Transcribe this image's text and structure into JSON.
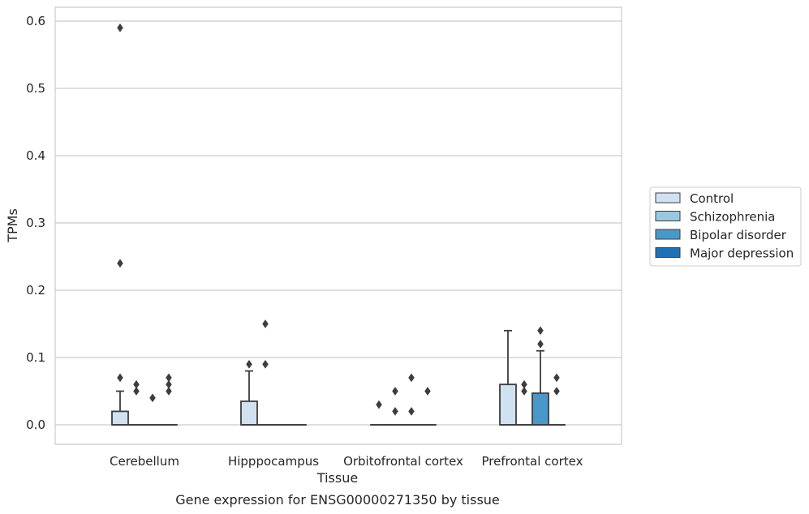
{
  "chart_data": {
    "type": "box",
    "title": "",
    "caption": "Gene expression for ENSG00000271350 by tissue",
    "xlabel": "Tissue",
    "ylabel": "TPMs",
    "ylim": [
      -0.028,
      0.62
    ],
    "yticks": [
      0.0,
      0.1,
      0.2,
      0.3,
      0.4,
      0.5,
      0.6
    ],
    "ytick_labels": [
      "0.0",
      "0.1",
      "0.2",
      "0.3",
      "0.4",
      "0.5",
      "0.6"
    ],
    "grid": "horizontal",
    "legend_position": "right",
    "categories": [
      "Cerebellum",
      "Hipppocampus",
      "Orbitofrontal cortex",
      "Prefrontal cortex"
    ],
    "series": [
      {
        "name": "Control",
        "color": "#d0e1f2",
        "boxes": [
          {
            "q1": 0.0,
            "median": 0.0,
            "q3": 0.02,
            "whisker_low": 0.0,
            "whisker_high": 0.05,
            "fliers": [
              0.07,
              0.24,
              0.59
            ]
          },
          {
            "q1": 0.0,
            "median": 0.0,
            "q3": 0.035,
            "whisker_low": 0.0,
            "whisker_high": 0.08,
            "fliers": [
              0.09
            ]
          },
          {
            "q1": 0.0,
            "median": 0.0,
            "q3": 0.0,
            "whisker_low": 0.0,
            "whisker_high": 0.0,
            "fliers": [
              0.03
            ]
          },
          {
            "q1": 0.0,
            "median": 0.0,
            "q3": 0.06,
            "whisker_low": 0.0,
            "whisker_high": 0.14,
            "fliers": []
          }
        ]
      },
      {
        "name": "Schizophrenia",
        "color": "#9ac8e0",
        "boxes": [
          {
            "q1": 0.0,
            "median": 0.0,
            "q3": 0.0,
            "whisker_low": 0.0,
            "whisker_high": 0.0,
            "fliers": [
              0.05,
              0.06
            ]
          },
          {
            "q1": 0.0,
            "median": 0.0,
            "q3": 0.0,
            "whisker_low": 0.0,
            "whisker_high": 0.0,
            "fliers": [
              0.09,
              0.15
            ]
          },
          {
            "q1": 0.0,
            "median": 0.0,
            "q3": 0.0,
            "whisker_low": 0.0,
            "whisker_high": 0.0,
            "fliers": [
              0.02,
              0.05
            ]
          },
          {
            "q1": 0.0,
            "median": 0.0,
            "q3": 0.0,
            "whisker_low": 0.0,
            "whisker_high": 0.0,
            "fliers": [
              0.05,
              0.06
            ]
          }
        ]
      },
      {
        "name": "Bipolar disorder",
        "color": "#4a98c9",
        "boxes": [
          {
            "q1": 0.0,
            "median": 0.0,
            "q3": 0.0,
            "whisker_low": 0.0,
            "whisker_high": 0.0,
            "fliers": [
              0.04
            ]
          },
          {
            "q1": 0.0,
            "median": 0.0,
            "q3": 0.0,
            "whisker_low": 0.0,
            "whisker_high": 0.0,
            "fliers": []
          },
          {
            "q1": 0.0,
            "median": 0.0,
            "q3": 0.0,
            "whisker_low": 0.0,
            "whisker_high": 0.0,
            "fliers": [
              0.02,
              0.07
            ]
          },
          {
            "q1": 0.0,
            "median": 0.0,
            "q3": 0.047,
            "whisker_low": 0.0,
            "whisker_high": 0.11,
            "fliers": [
              0.12,
              0.14
            ]
          }
        ]
      },
      {
        "name": "Major depression",
        "color": "#2070b4",
        "boxes": [
          {
            "q1": 0.0,
            "median": 0.0,
            "q3": 0.0,
            "whisker_low": 0.0,
            "whisker_high": 0.0,
            "fliers": [
              0.05,
              0.06,
              0.07
            ]
          },
          {
            "q1": 0.0,
            "median": 0.0,
            "q3": 0.0,
            "whisker_low": 0.0,
            "whisker_high": 0.0,
            "fliers": []
          },
          {
            "q1": 0.0,
            "median": 0.0,
            "q3": 0.0,
            "whisker_low": 0.0,
            "whisker_high": 0.0,
            "fliers": [
              0.05
            ]
          },
          {
            "q1": 0.0,
            "median": 0.0,
            "q3": 0.0,
            "whisker_low": 0.0,
            "whisker_high": 0.0,
            "fliers": [
              0.05,
              0.07
            ]
          }
        ]
      }
    ]
  }
}
